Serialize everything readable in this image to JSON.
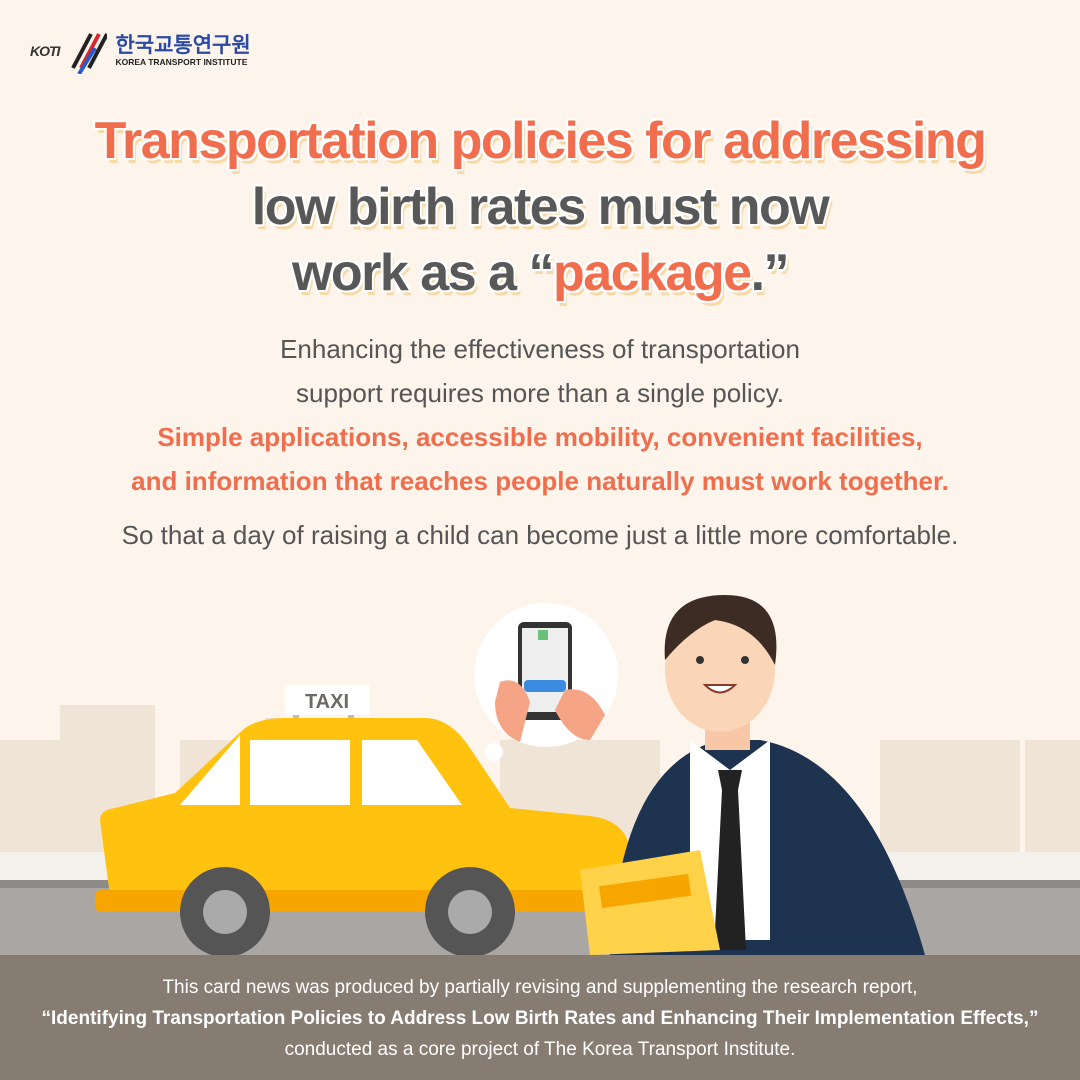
{
  "logo": {
    "abbr": "KOTI",
    "korean_name": "한국교통연구원",
    "english_name": "KOREA TRANSPORT INSTITUTE"
  },
  "headline": {
    "line1": "Transportation policies for addressing",
    "line2": "low birth rates must now",
    "line3_pre": "work as a “",
    "line3_hl": "package",
    "line3_post": ".”"
  },
  "body": {
    "line1": "Enhancing the effectiveness of transportation",
    "line2": "support requires more than a single policy.",
    "hl1": "Simple applications, accessible mobility, convenient facilities,",
    "hl2": "and information that reaches people naturally must work together.",
    "closing": "So that a day of raising a child can become just a little more comfortable."
  },
  "illustration": {
    "taxi_sign": "TAXI"
  },
  "footer": {
    "line1": "This card news was produced by partially revising and supplementing the research report,",
    "line2": "“Identifying Transportation Policies to Address Low Birth Rates and Enhancing Their Implementation Effects,”",
    "line3": "conducted as a core project of The Korea Transport Institute."
  },
  "colors": {
    "accent": "#f06e4e",
    "text": "#585858",
    "background": "#fdf5eb",
    "footer": "#867c71",
    "taxi": "#ffc20e",
    "suit": "#1d3350"
  }
}
